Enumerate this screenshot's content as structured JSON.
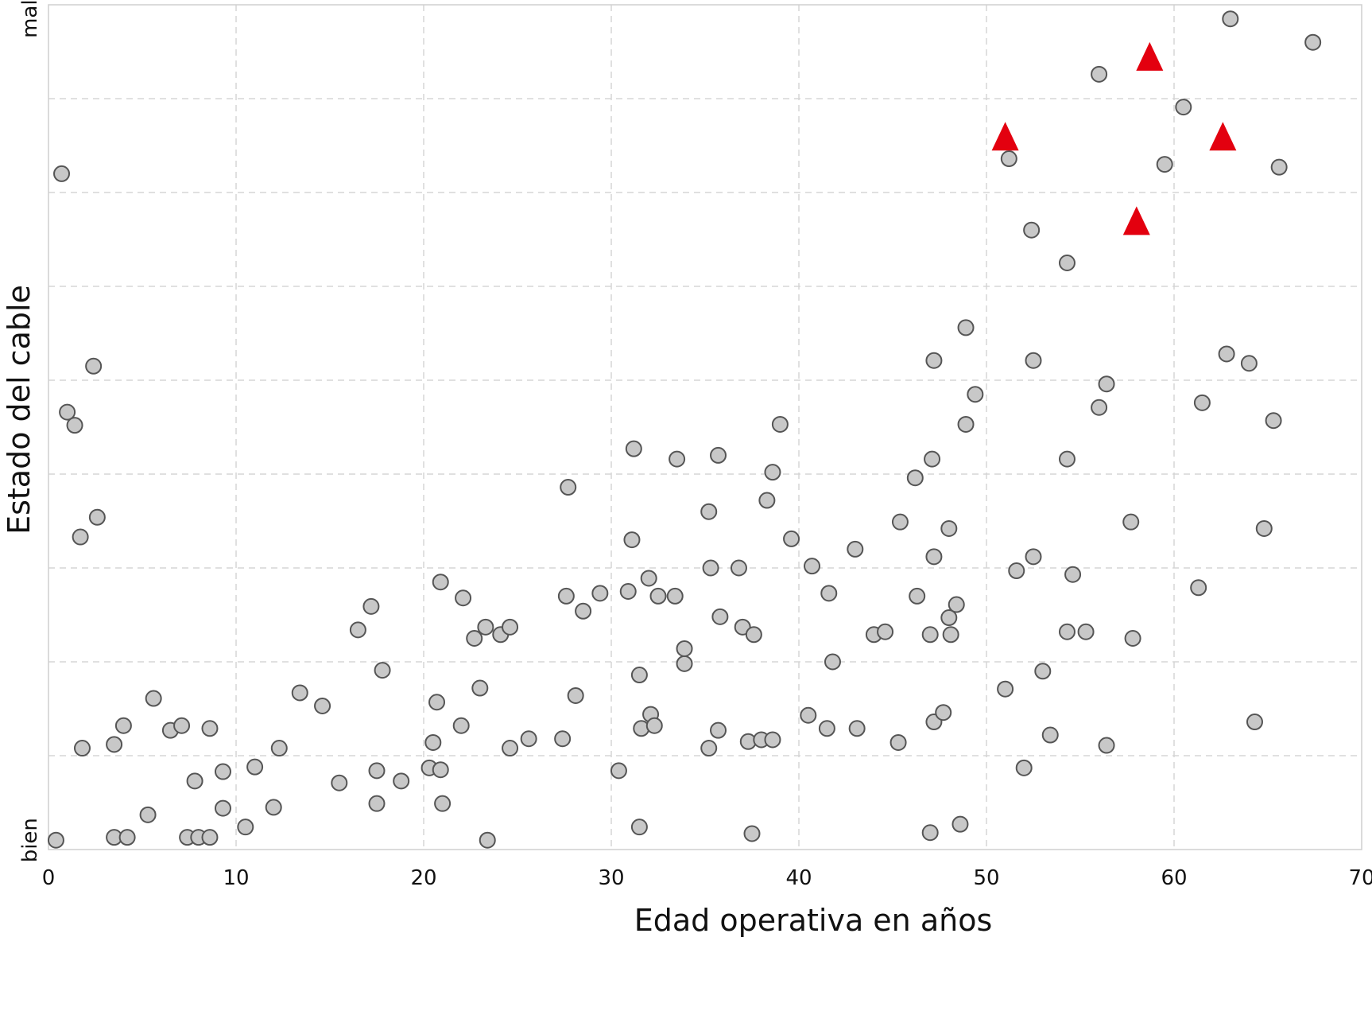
{
  "chart_data": {
    "type": "scatter",
    "xlabel": "Edad operativa en años",
    "ylabel": "Estado del cable",
    "xlim": [
      0,
      70
    ],
    "ylim": [
      0,
      9
    ],
    "x_ticks": [
      0,
      10,
      20,
      30,
      40,
      50,
      60,
      70
    ],
    "y_tick_labels": [
      {
        "value": 0.1,
        "label": "bien"
      },
      {
        "value": 8.85,
        "label": "mal"
      }
    ],
    "y_grid": [
      1,
      2,
      3,
      4,
      5,
      6,
      7,
      8
    ],
    "grid": true,
    "series": [
      {
        "marker": "circle",
        "color": "#c8c8c8",
        "edge_color": "#555555",
        "points": [
          [
            0.4,
            0.1
          ],
          [
            3.5,
            0.13
          ],
          [
            4.2,
            0.13
          ],
          [
            7.4,
            0.13
          ],
          [
            8.0,
            0.13
          ],
          [
            8.6,
            0.13
          ],
          [
            23.4,
            0.1
          ],
          [
            47.0,
            0.18
          ],
          [
            37.5,
            0.17
          ],
          [
            31.5,
            0.24
          ],
          [
            10.5,
            0.24
          ],
          [
            48.6,
            0.27
          ],
          [
            5.3,
            0.37
          ],
          [
            9.3,
            0.44
          ],
          [
            12.0,
            0.45
          ],
          [
            17.5,
            0.49
          ],
          [
            21.0,
            0.49
          ],
          [
            7.8,
            0.73
          ],
          [
            15.5,
            0.71
          ],
          [
            18.8,
            0.73
          ],
          [
            17.5,
            0.84
          ],
          [
            20.3,
            0.87
          ],
          [
            20.9,
            0.85
          ],
          [
            30.4,
            0.84
          ],
          [
            52.0,
            0.87
          ],
          [
            1.8,
            1.08
          ],
          [
            3.5,
            1.12
          ],
          [
            9.3,
            0.83
          ],
          [
            11.0,
            0.88
          ],
          [
            12.3,
            1.08
          ],
          [
            24.6,
            1.08
          ],
          [
            35.2,
            1.08
          ],
          [
            37.3,
            1.15
          ],
          [
            38.0,
            1.17
          ],
          [
            38.6,
            1.17
          ],
          [
            45.3,
            1.14
          ],
          [
            53.4,
            1.22
          ],
          [
            56.4,
            1.11
          ],
          [
            20.5,
            1.14
          ],
          [
            25.6,
            1.18
          ],
          [
            27.4,
            1.18
          ],
          [
            4.0,
            1.32
          ],
          [
            6.5,
            1.27
          ],
          [
            7.1,
            1.32
          ],
          [
            8.6,
            1.29
          ],
          [
            22.0,
            1.32
          ],
          [
            31.6,
            1.29
          ],
          [
            32.1,
            1.44
          ],
          [
            32.3,
            1.32
          ],
          [
            35.7,
            1.27
          ],
          [
            40.5,
            1.43
          ],
          [
            41.5,
            1.29
          ],
          [
            43.1,
            1.29
          ],
          [
            47.2,
            1.36
          ],
          [
            47.7,
            1.46
          ],
          [
            64.3,
            1.36
          ],
          [
            5.6,
            1.61
          ],
          [
            13.4,
            1.67
          ],
          [
            14.6,
            1.53
          ],
          [
            20.7,
            1.57
          ],
          [
            23.0,
            1.72
          ],
          [
            28.1,
            1.64
          ],
          [
            31.5,
            1.86
          ],
          [
            51.0,
            1.71
          ],
          [
            53.0,
            1.9
          ],
          [
            17.8,
            1.91
          ],
          [
            33.9,
            1.98
          ],
          [
            33.9,
            2.14
          ],
          [
            41.8,
            2.0
          ],
          [
            16.5,
            2.34
          ],
          [
            22.7,
            2.25
          ],
          [
            23.3,
            2.37
          ],
          [
            24.1,
            2.29
          ],
          [
            24.6,
            2.37
          ],
          [
            35.8,
            2.48
          ],
          [
            37.0,
            2.37
          ],
          [
            37.6,
            2.29
          ],
          [
            44.0,
            2.29
          ],
          [
            44.6,
            2.32
          ],
          [
            47.0,
            2.29
          ],
          [
            48.1,
            2.29
          ],
          [
            48.0,
            2.47
          ],
          [
            48.4,
            2.61
          ],
          [
            54.3,
            2.32
          ],
          [
            55.3,
            2.32
          ],
          [
            57.8,
            2.25
          ],
          [
            17.2,
            2.59
          ],
          [
            20.9,
            2.85
          ],
          [
            22.1,
            2.68
          ],
          [
            27.6,
            2.7
          ],
          [
            28.5,
            2.54
          ],
          [
            29.4,
            2.73
          ],
          [
            30.9,
            2.75
          ],
          [
            32.0,
            2.89
          ],
          [
            32.5,
            2.7
          ],
          [
            33.4,
            2.7
          ],
          [
            41.6,
            2.73
          ],
          [
            46.3,
            2.7
          ],
          [
            61.3,
            2.79
          ],
          [
            35.3,
            3.0
          ],
          [
            36.8,
            3.0
          ],
          [
            40.7,
            3.02
          ],
          [
            51.6,
            2.97
          ],
          [
            52.5,
            3.12
          ],
          [
            54.6,
            2.93
          ],
          [
            47.2,
            3.12
          ],
          [
            43.0,
            3.2
          ],
          [
            31.1,
            3.3
          ],
          [
            39.6,
            3.31
          ],
          [
            1.7,
            3.33
          ],
          [
            2.6,
            3.54
          ],
          [
            27.7,
            3.86
          ],
          [
            35.2,
            3.6
          ],
          [
            38.3,
            3.72
          ],
          [
            45.4,
            3.49
          ],
          [
            48.0,
            3.42
          ],
          [
            57.7,
            3.49
          ],
          [
            64.8,
            3.42
          ],
          [
            31.2,
            4.27
          ],
          [
            33.5,
            4.16
          ],
          [
            35.7,
            4.2
          ],
          [
            38.6,
            4.02
          ],
          [
            39.0,
            4.53
          ],
          [
            46.2,
            3.96
          ],
          [
            47.1,
            4.16
          ],
          [
            48.9,
            4.53
          ],
          [
            54.3,
            4.16
          ],
          [
            65.3,
            4.57
          ],
          [
            1.0,
            4.66
          ],
          [
            1.4,
            4.52
          ],
          [
            49.4,
            4.85
          ],
          [
            56.0,
            4.71
          ],
          [
            56.4,
            4.96
          ],
          [
            61.5,
            4.76
          ],
          [
            2.4,
            5.15
          ],
          [
            47.2,
            5.21
          ],
          [
            52.5,
            5.21
          ],
          [
            62.8,
            5.28
          ],
          [
            64.0,
            5.18
          ],
          [
            48.9,
            5.56
          ],
          [
            52.4,
            6.6
          ],
          [
            54.3,
            6.25
          ],
          [
            0.7,
            7.2
          ],
          [
            51.2,
            7.36
          ],
          [
            59.5,
            7.3
          ],
          [
            65.6,
            7.27
          ],
          [
            60.5,
            7.91
          ],
          [
            56.0,
            8.26
          ],
          [
            63.0,
            8.85
          ],
          [
            67.4,
            8.6
          ]
        ]
      },
      {
        "marker": "triangle",
        "color": "#e3000f",
        "points": [
          [
            51.0,
            7.6
          ],
          [
            58.7,
            8.45
          ],
          [
            62.6,
            7.6
          ],
          [
            58.0,
            6.7
          ]
        ]
      }
    ]
  }
}
